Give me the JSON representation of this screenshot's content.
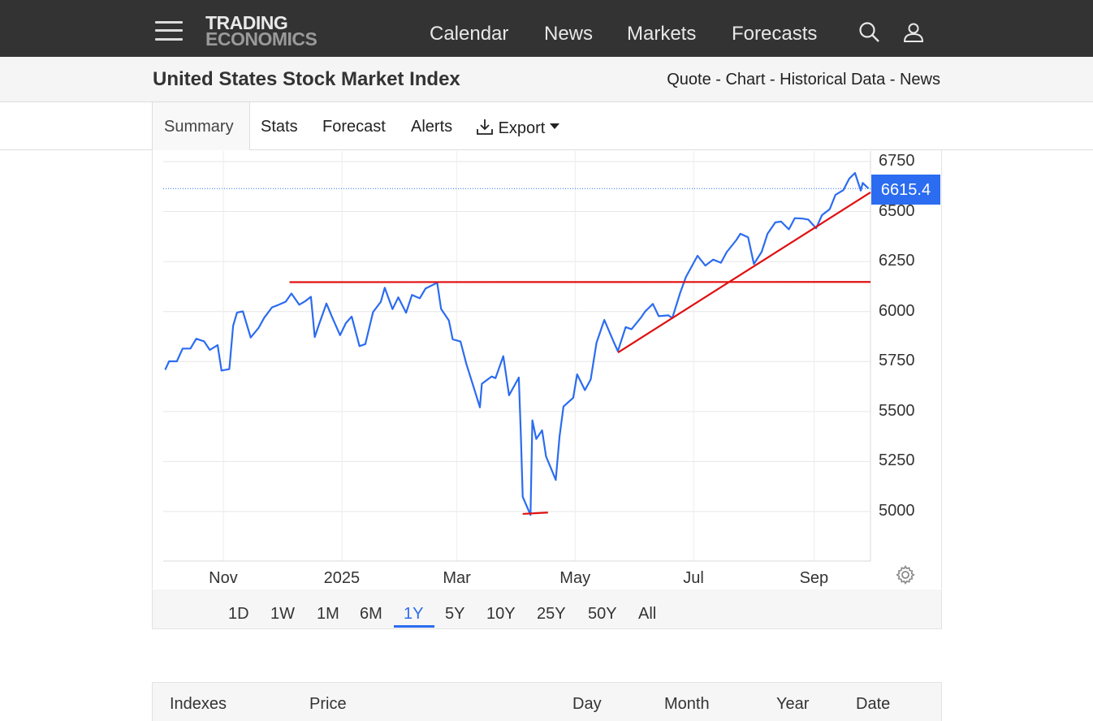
{
  "header": {
    "logo_line1": "TRADING",
    "logo_line2": "ECONOMICS",
    "nav": [
      "Calendar",
      "News",
      "Markets",
      "Forecasts"
    ],
    "icons": [
      "menu-icon",
      "search-icon",
      "user-icon"
    ]
  },
  "subheader": {
    "title": "United States Stock Market Index",
    "links": [
      "Quote",
      "Chart",
      "Historical Data",
      "News"
    ],
    "separator": " - "
  },
  "tabs": {
    "items": [
      "Summary",
      "Stats",
      "Forecast",
      "Alerts",
      "Export"
    ],
    "active": "Summary"
  },
  "chart": {
    "current_price": "6615.4",
    "ranges": [
      "1D",
      "1W",
      "1M",
      "6M",
      "1Y",
      "5Y",
      "10Y",
      "25Y",
      "50Y",
      "All"
    ],
    "active_range": "1Y",
    "line_color": "#2b6cf0",
    "annotation_color": "#e01010"
  },
  "chart_data": {
    "type": "line",
    "title": "",
    "xlabel": "",
    "ylabel": "",
    "ylim": [
      4750,
      6790
    ],
    "yticks": [
      5000,
      5250,
      5500,
      5750,
      6000,
      6250,
      6500,
      6750
    ],
    "xticks": [
      {
        "label": "Nov",
        "date": "2024-11-01"
      },
      {
        "label": "2025",
        "date": "2025-01-01"
      },
      {
        "label": "Mar",
        "date": "2025-03-01"
      },
      {
        "label": "May",
        "date": "2025-05-01"
      },
      {
        "label": "Jul",
        "date": "2025-07-01"
      },
      {
        "label": "Sep",
        "date": "2025-09-01"
      }
    ],
    "grid": true,
    "series": [
      {
        "values": [
          [
            "2024-10-02",
            5709
          ],
          [
            "2024-10-04",
            5751
          ],
          [
            "2024-10-08",
            5751
          ],
          [
            "2024-10-11",
            5815
          ],
          [
            "2024-10-15",
            5815
          ],
          [
            "2024-10-18",
            5864
          ],
          [
            "2024-10-22",
            5851
          ],
          [
            "2024-10-25",
            5808
          ],
          [
            "2024-10-29",
            5832
          ],
          [
            "2024-10-31",
            5705
          ],
          [
            "2024-11-04",
            5712
          ],
          [
            "2024-11-06",
            5929
          ],
          [
            "2024-11-08",
            5995
          ],
          [
            "2024-11-11",
            6001
          ],
          [
            "2024-11-15",
            5870
          ],
          [
            "2024-11-19",
            5917
          ],
          [
            "2024-11-22",
            5969
          ],
          [
            "2024-11-26",
            6021
          ],
          [
            "2024-11-29",
            6032
          ],
          [
            "2024-12-03",
            6049
          ],
          [
            "2024-12-06",
            6090
          ],
          [
            "2024-12-10",
            6034
          ],
          [
            "2024-12-13",
            6051
          ],
          [
            "2024-12-16",
            6074
          ],
          [
            "2024-12-18",
            5872
          ],
          [
            "2024-12-20",
            5930
          ],
          [
            "2024-12-24",
            6040
          ],
          [
            "2024-12-27",
            5970
          ],
          [
            "2024-12-31",
            5882
          ],
          [
            "2025-01-03",
            5942
          ],
          [
            "2025-01-06",
            5975
          ],
          [
            "2025-01-10",
            5827
          ],
          [
            "2025-01-13",
            5837
          ],
          [
            "2025-01-17",
            5997
          ],
          [
            "2025-01-21",
            6049
          ],
          [
            "2025-01-23",
            6119
          ],
          [
            "2025-01-27",
            6012
          ],
          [
            "2025-01-30",
            6071
          ],
          [
            "2025-02-03",
            5994
          ],
          [
            "2025-02-06",
            6083
          ],
          [
            "2025-02-10",
            6066
          ],
          [
            "2025-02-13",
            6115
          ],
          [
            "2025-02-19",
            6144
          ],
          [
            "2025-02-21",
            6013
          ],
          [
            "2025-02-25",
            5955
          ],
          [
            "2025-02-27",
            5861
          ],
          [
            "2025-03-03",
            5850
          ],
          [
            "2025-03-06",
            5738
          ],
          [
            "2025-03-10",
            5614
          ],
          [
            "2025-03-13",
            5521
          ],
          [
            "2025-03-14",
            5639
          ],
          [
            "2025-03-19",
            5675
          ],
          [
            "2025-03-21",
            5667
          ],
          [
            "2025-03-25",
            5777
          ],
          [
            "2025-03-28",
            5581
          ],
          [
            "2025-04-02",
            5670
          ],
          [
            "2025-04-03",
            5397
          ],
          [
            "2025-04-04",
            5074
          ],
          [
            "2025-04-08",
            4983
          ],
          [
            "2025-04-09",
            5456
          ],
          [
            "2025-04-11",
            5363
          ],
          [
            "2025-04-14",
            5406
          ],
          [
            "2025-04-16",
            5276
          ],
          [
            "2025-04-21",
            5158
          ],
          [
            "2025-04-23",
            5376
          ],
          [
            "2025-04-25",
            5525
          ],
          [
            "2025-04-30",
            5569
          ],
          [
            "2025-05-02",
            5686
          ],
          [
            "2025-05-06",
            5607
          ],
          [
            "2025-05-09",
            5660
          ],
          [
            "2025-05-12",
            5844
          ],
          [
            "2025-05-16",
            5958
          ],
          [
            "2025-05-21",
            5845
          ],
          [
            "2025-05-23",
            5802
          ],
          [
            "2025-05-27",
            5922
          ],
          [
            "2025-05-30",
            5912
          ],
          [
            "2025-06-04",
            5971
          ],
          [
            "2025-06-06",
            6000
          ],
          [
            "2025-06-10",
            6038
          ],
          [
            "2025-06-13",
            5977
          ],
          [
            "2025-06-18",
            5981
          ],
          [
            "2025-06-20",
            5967
          ],
          [
            "2025-06-24",
            6092
          ],
          [
            "2025-06-27",
            6173
          ],
          [
            "2025-07-03",
            6279
          ],
          [
            "2025-07-07",
            6230
          ],
          [
            "2025-07-11",
            6260
          ],
          [
            "2025-07-15",
            6244
          ],
          [
            "2025-07-18",
            6297
          ],
          [
            "2025-07-23",
            6358
          ],
          [
            "2025-07-25",
            6389
          ],
          [
            "2025-07-29",
            6371
          ],
          [
            "2025-08-01",
            6238
          ],
          [
            "2025-08-05",
            6299
          ],
          [
            "2025-08-08",
            6389
          ],
          [
            "2025-08-12",
            6446
          ],
          [
            "2025-08-15",
            6450
          ],
          [
            "2025-08-19",
            6411
          ],
          [
            "2025-08-22",
            6467
          ],
          [
            "2025-08-26",
            6465
          ],
          [
            "2025-08-29",
            6460
          ],
          [
            "2025-09-02",
            6416
          ],
          [
            "2025-09-05",
            6482
          ],
          [
            "2025-09-09",
            6512
          ],
          [
            "2025-09-12",
            6584
          ],
          [
            "2025-09-16",
            6607
          ],
          [
            "2025-09-19",
            6664
          ],
          [
            "2025-09-22",
            6693
          ],
          [
            "2025-09-25",
            6605
          ],
          [
            "2025-09-26",
            6643
          ],
          [
            "2025-09-29",
            6615
          ]
        ]
      }
    ],
    "annotations": [
      {
        "type": "horizontal-resistance",
        "from": [
          "2024-12-05",
          6147
        ],
        "to": [
          "2025-09-30",
          6148
        ]
      },
      {
        "type": "trendline",
        "from": [
          "2025-05-23",
          5795
        ],
        "to": [
          "2025-09-30",
          6596
        ]
      },
      {
        "type": "horizontal-support",
        "from": [
          "2025-04-04",
          4988
        ],
        "to": [
          "2025-04-17",
          4995
        ]
      }
    ]
  },
  "table": {
    "headers": [
      "Indexes",
      "Price",
      "Day",
      "Month",
      "Year",
      "Date"
    ]
  }
}
